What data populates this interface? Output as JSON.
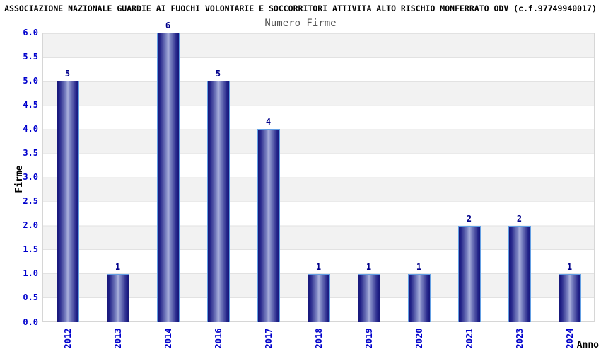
{
  "header": {
    "title": "ASSOCIAZIONE NAZIONALE GUARDIE AI FUOCHI VOLONTARIE E SOCCORRITORI ATTIVITA ALTO RISCHIO MONFERRATO ODV (c.f.97749940017)"
  },
  "chart_data": {
    "type": "bar",
    "title": "Numero Firme",
    "xlabel": "Anno",
    "ylabel": "Firme",
    "categories": [
      "2012",
      "2013",
      "2014",
      "2016",
      "2017",
      "2018",
      "2019",
      "2020",
      "2021",
      "2023",
      "2024"
    ],
    "values": [
      5,
      1,
      6,
      5,
      4,
      1,
      1,
      1,
      2,
      2,
      1
    ],
    "ylim": [
      0,
      6
    ],
    "ytick_step": 0.5,
    "ytick_labels": [
      "0.0",
      "0.5",
      "1.0",
      "1.5",
      "2.0",
      "2.5",
      "3.0",
      "3.5",
      "4.0",
      "4.5",
      "5.0",
      "5.5",
      "6.0"
    ],
    "grid": "horizontal-bands",
    "legend": "none",
    "colors": {
      "bar_edge_dark": "#17177a",
      "bar_center_light": "#abb1dc",
      "bar_border": "#64a0e4",
      "value_label": "#00008b",
      "tick_label": "#0000cd",
      "subtitle": "#555555",
      "band_gray": "#f2f2f2",
      "band_white": "#ffffff",
      "gridline": "#e2e2e2",
      "plot_border": "#d6d6d6",
      "title_text": "#000000"
    }
  }
}
